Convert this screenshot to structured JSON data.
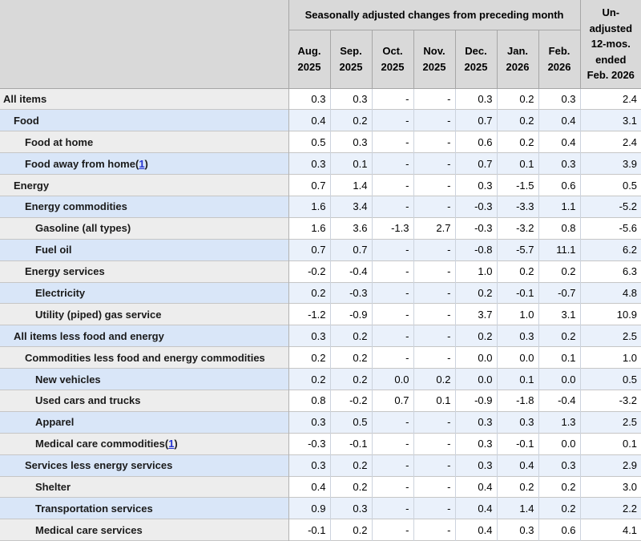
{
  "table_header": {
    "corner": "",
    "group_title": "Seasonally adjusted changes from preceding month",
    "months": [
      {
        "l1": "Aug.",
        "l2": "2025"
      },
      {
        "l1": "Sep.",
        "l2": "2025"
      },
      {
        "l1": "Oct.",
        "l2": "2025"
      },
      {
        "l1": "Nov.",
        "l2": "2025"
      },
      {
        "l1": "Dec.",
        "l2": "2025"
      },
      {
        "l1": "Jan.",
        "l2": "2026"
      },
      {
        "l1": "Feb.",
        "l2": "2026"
      }
    ],
    "unadjusted_lines": [
      "Un-",
      "adjusted",
      "12-mos.",
      "ended",
      "Feb. 2026"
    ]
  },
  "colors": {
    "header_bg": "#d9d9d9",
    "row_gray_label": "#ededed",
    "row_blue_label": "#d9e6f8",
    "cell_white": "#ffffff",
    "cell_blue": "#eaf1fb",
    "footnote_link": "#2433d0"
  },
  "chart_data": {
    "type": "table",
    "title": "Seasonally adjusted changes from preceding month",
    "columns": [
      "Aug. 2025",
      "Sep. 2025",
      "Oct. 2025",
      "Nov. 2025",
      "Dec. 2025",
      "Jan. 2026",
      "Feb. 2026",
      "Un-adjusted 12-mos. ended Feb. 2026"
    ],
    "rows": [
      {
        "label": "All items",
        "indent": 0,
        "footnote": "",
        "values": [
          "0.3",
          "0.3",
          "-",
          "-",
          "0.3",
          "0.2",
          "0.3",
          "2.4"
        ]
      },
      {
        "label": "Food",
        "indent": 1,
        "footnote": "",
        "values": [
          "0.4",
          "0.2",
          "-",
          "-",
          "0.7",
          "0.2",
          "0.4",
          "3.1"
        ]
      },
      {
        "label": "Food at home",
        "indent": 2,
        "footnote": "",
        "values": [
          "0.5",
          "0.3",
          "-",
          "-",
          "0.6",
          "0.2",
          "0.4",
          "2.4"
        ]
      },
      {
        "label": "Food away from home",
        "indent": 2,
        "footnote": "1",
        "values": [
          "0.3",
          "0.1",
          "-",
          "-",
          "0.7",
          "0.1",
          "0.3",
          "3.9"
        ]
      },
      {
        "label": "Energy",
        "indent": 1,
        "footnote": "",
        "values": [
          "0.7",
          "1.4",
          "-",
          "-",
          "0.3",
          "-1.5",
          "0.6",
          "0.5"
        ]
      },
      {
        "label": "Energy commodities",
        "indent": 2,
        "footnote": "",
        "values": [
          "1.6",
          "3.4",
          "-",
          "-",
          "-0.3",
          "-3.3",
          "1.1",
          "-5.2"
        ]
      },
      {
        "label": "Gasoline (all types)",
        "indent": 3,
        "footnote": "",
        "values": [
          "1.6",
          "3.6",
          "-1.3",
          "2.7",
          "-0.3",
          "-3.2",
          "0.8",
          "-5.6"
        ]
      },
      {
        "label": "Fuel oil",
        "indent": 3,
        "footnote": "",
        "values": [
          "0.7",
          "0.7",
          "-",
          "-",
          "-0.8",
          "-5.7",
          "11.1",
          "6.2"
        ]
      },
      {
        "label": "Energy services",
        "indent": 2,
        "footnote": "",
        "values": [
          "-0.2",
          "-0.4",
          "-",
          "-",
          "1.0",
          "0.2",
          "0.2",
          "6.3"
        ]
      },
      {
        "label": "Electricity",
        "indent": 3,
        "footnote": "",
        "values": [
          "0.2",
          "-0.3",
          "-",
          "-",
          "0.2",
          "-0.1",
          "-0.7",
          "4.8"
        ]
      },
      {
        "label": "Utility (piped) gas service",
        "indent": 3,
        "footnote": "",
        "values": [
          "-1.2",
          "-0.9",
          "-",
          "-",
          "3.7",
          "1.0",
          "3.1",
          "10.9"
        ]
      },
      {
        "label": "All items less food and energy",
        "indent": 1,
        "footnote": "",
        "values": [
          "0.3",
          "0.2",
          "-",
          "-",
          "0.2",
          "0.3",
          "0.2",
          "2.5"
        ]
      },
      {
        "label": "Commodities less food and energy commodities",
        "indent": 2,
        "footnote": "",
        "values": [
          "0.2",
          "0.2",
          "-",
          "-",
          "0.0",
          "0.0",
          "0.1",
          "1.0"
        ]
      },
      {
        "label": "New vehicles",
        "indent": 3,
        "footnote": "",
        "values": [
          "0.2",
          "0.2",
          "0.0",
          "0.2",
          "0.0",
          "0.1",
          "0.0",
          "0.5"
        ]
      },
      {
        "label": "Used cars and trucks",
        "indent": 3,
        "footnote": "",
        "values": [
          "0.8",
          "-0.2",
          "0.7",
          "0.1",
          "-0.9",
          "-1.8",
          "-0.4",
          "-3.2"
        ]
      },
      {
        "label": "Apparel",
        "indent": 3,
        "footnote": "",
        "values": [
          "0.3",
          "0.5",
          "-",
          "-",
          "0.3",
          "0.3",
          "1.3",
          "2.5"
        ]
      },
      {
        "label": "Medical care commodities",
        "indent": 3,
        "footnote": "1",
        "values": [
          "-0.3",
          "-0.1",
          "-",
          "-",
          "0.3",
          "-0.1",
          "0.0",
          "0.1"
        ]
      },
      {
        "label": "Services less energy services",
        "indent": 2,
        "footnote": "",
        "values": [
          "0.3",
          "0.2",
          "-",
          "-",
          "0.3",
          "0.4",
          "0.3",
          "2.9"
        ]
      },
      {
        "label": "Shelter",
        "indent": 3,
        "footnote": "",
        "values": [
          "0.4",
          "0.2",
          "-",
          "-",
          "0.4",
          "0.2",
          "0.2",
          "3.0"
        ]
      },
      {
        "label": "Transportation services",
        "indent": 3,
        "footnote": "",
        "values": [
          "0.9",
          "0.3",
          "-",
          "-",
          "0.4",
          "1.4",
          "0.2",
          "2.2"
        ]
      },
      {
        "label": "Medical care services",
        "indent": 3,
        "footnote": "",
        "values": [
          "-0.1",
          "0.2",
          "-",
          "-",
          "0.4",
          "0.3",
          "0.6",
          "4.1"
        ]
      }
    ]
  }
}
